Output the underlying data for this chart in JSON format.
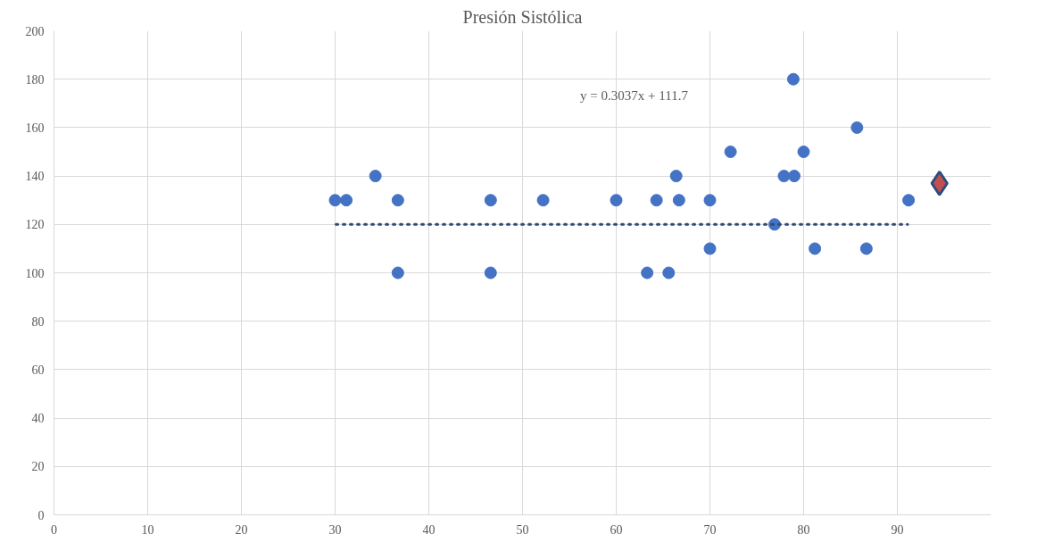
{
  "chart_data": {
    "type": "scatter",
    "title": "Presión Sistólica",
    "xlim": [
      0,
      100
    ],
    "ylim": [
      0,
      200
    ],
    "xticks": [
      0,
      10,
      20,
      30,
      40,
      50,
      60,
      70,
      80,
      90
    ],
    "yticks": [
      0,
      20,
      40,
      60,
      80,
      100,
      120,
      140,
      160,
      180,
      200
    ],
    "grid": true,
    "marker": "circle",
    "series": [
      {
        "color": "#4472c4",
        "x": [
          30.0,
          31.2,
          34.3,
          36.7,
          36.7,
          46.6,
          46.6,
          52.2,
          60.0,
          64.3,
          63.3,
          65.6,
          66.7,
          66.4,
          70.0,
          70.0,
          72.2,
          76.9,
          77.9,
          79.0,
          78.9,
          80.0,
          81.2,
          85.7,
          86.7,
          91.2
        ],
        "values": [
          130,
          130,
          140,
          130,
          100,
          130,
          100,
          130,
          130,
          130,
          100,
          100,
          130,
          140,
          130,
          110,
          150,
          120,
          140,
          140,
          180,
          150,
          110,
          160,
          110,
          130
        ]
      },
      {
        "type": "scatter",
        "color": "#c0504d",
        "marker": "diamond",
        "x": [
          94.5
        ],
        "values": [
          137
        ]
      },
      {
        "type": "line",
        "color": "#2f4b7c",
        "marker": "none",
        "line_style": "dotted",
        "x": [
          30.1,
          91.1
        ],
        "values": [
          120,
          120
        ]
      }
    ],
    "annotations": [
      "y = 0.3037x + 111.7"
    ]
  }
}
